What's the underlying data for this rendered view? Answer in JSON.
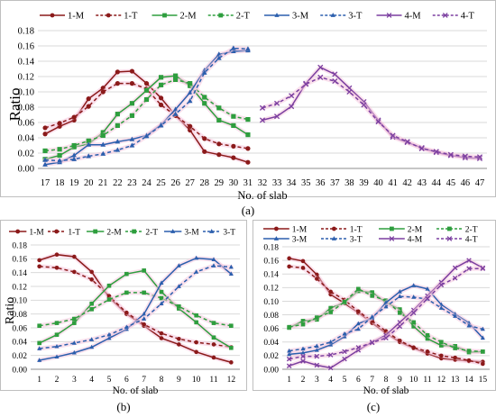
{
  "captions": [
    "(a)",
    "(b)",
    "(c)"
  ],
  "chart_data": [
    {
      "type": "line",
      "xlabel": "No. of slab",
      "ylabel": "Ratio",
      "ylim": [
        0,
        0.18
      ],
      "yticks": [
        "0.00",
        "0.02",
        "0.04",
        "0.06",
        "0.08",
        "0.10",
        "0.12",
        "0.14",
        "0.16",
        "0.18"
      ],
      "categories": [
        17,
        18,
        19,
        20,
        21,
        22,
        23,
        24,
        25,
        26,
        27,
        28,
        29,
        30,
        31,
        32,
        33,
        34,
        35,
        36,
        37,
        38,
        39,
        40,
        41,
        42,
        43,
        44,
        45,
        46,
        47
      ],
      "grid": true,
      "legend_position": "top",
      "series": [
        {
          "name": "1-M",
          "x": [
            17,
            18,
            19,
            20,
            21,
            22,
            23,
            24,
            25,
            26,
            27,
            28,
            29,
            30,
            31
          ],
          "values": [
            0.045,
            0.055,
            0.063,
            0.091,
            0.105,
            0.126,
            0.127,
            0.111,
            0.092,
            0.069,
            0.05,
            0.022,
            0.018,
            0.014,
            0.008
          ]
        },
        {
          "name": "1-T",
          "x": [
            17,
            18,
            19,
            20,
            21,
            22,
            23,
            24,
            25,
            26,
            27,
            28,
            29,
            30,
            31
          ],
          "values": [
            0.053,
            0.059,
            0.067,
            0.081,
            0.1,
            0.111,
            0.111,
            0.104,
            0.083,
            0.069,
            0.055,
            0.039,
            0.032,
            0.029,
            0.026
          ]
        },
        {
          "name": "2-M",
          "x": [
            17,
            18,
            19,
            20,
            21,
            22,
            23,
            24,
            25,
            26,
            27,
            28,
            29,
            30,
            31
          ],
          "values": [
            0.012,
            0.017,
            0.028,
            0.032,
            0.047,
            0.071,
            0.085,
            0.102,
            0.119,
            0.121,
            0.108,
            0.085,
            0.063,
            0.056,
            0.044
          ]
        },
        {
          "name": "2-T",
          "x": [
            17,
            18,
            19,
            20,
            21,
            22,
            23,
            24,
            25,
            26,
            27,
            28,
            29,
            30,
            31
          ],
          "values": [
            0.023,
            0.025,
            0.03,
            0.036,
            0.043,
            0.056,
            0.069,
            0.09,
            0.109,
            0.116,
            0.111,
            0.093,
            0.079,
            0.068,
            0.064
          ]
        },
        {
          "name": "3-M",
          "x": [
            17,
            18,
            19,
            20,
            21,
            22,
            23,
            24,
            25,
            26,
            27,
            28,
            29,
            30,
            31
          ],
          "values": [
            0.005,
            0.008,
            0.017,
            0.031,
            0.031,
            0.035,
            0.038,
            0.043,
            0.057,
            0.077,
            0.099,
            0.128,
            0.149,
            0.153,
            0.154
          ]
        },
        {
          "name": "3-T",
          "x": [
            17,
            18,
            19,
            20,
            21,
            22,
            23,
            24,
            25,
            26,
            27,
            28,
            29,
            30,
            31
          ],
          "values": [
            0.011,
            0.01,
            0.012,
            0.016,
            0.019,
            0.024,
            0.03,
            0.042,
            0.056,
            0.071,
            0.088,
            0.125,
            0.144,
            0.157,
            0.156
          ]
        },
        {
          "name": "4-M",
          "x": [
            32,
            33,
            34,
            35,
            36,
            37,
            38,
            39,
            40,
            41,
            42,
            43,
            44,
            45,
            46,
            47
          ],
          "values": [
            0.063,
            0.068,
            0.081,
            0.111,
            0.132,
            0.123,
            0.105,
            0.087,
            0.063,
            0.041,
            0.034,
            0.027,
            0.021,
            0.017,
            0.014,
            0.013
          ]
        },
        {
          "name": "4-T",
          "x": [
            32,
            33,
            34,
            35,
            36,
            37,
            38,
            39,
            40,
            41,
            42,
            43,
            44,
            45,
            46,
            47
          ],
          "values": [
            0.079,
            0.085,
            0.095,
            0.11,
            0.119,
            0.114,
            0.1,
            0.083,
            0.061,
            0.043,
            0.035,
            0.026,
            0.022,
            0.018,
            0.016,
            0.015
          ]
        }
      ]
    },
    {
      "type": "line",
      "xlabel": "No. of slab",
      "ylabel": "Ratio",
      "ylim": [
        0,
        0.18
      ],
      "yticks": [
        "0.00",
        "0.02",
        "0.04",
        "0.06",
        "0.08",
        "0.10",
        "0.12",
        "0.14",
        "0.16",
        "0.18"
      ],
      "categories": [
        1,
        2,
        3,
        4,
        5,
        6,
        7,
        8,
        9,
        10,
        11,
        12
      ],
      "grid": true,
      "legend_position": "top",
      "series": [
        {
          "name": "1-M",
          "values": [
            0.158,
            0.166,
            0.163,
            0.141,
            0.104,
            0.08,
            0.063,
            0.045,
            0.036,
            0.025,
            0.017,
            0.01
          ]
        },
        {
          "name": "1-T",
          "values": [
            0.149,
            0.147,
            0.141,
            0.13,
            0.106,
            0.082,
            0.065,
            0.052,
            0.044,
            0.039,
            0.036,
            0.032
          ]
        },
        {
          "name": "2-M",
          "values": [
            0.038,
            0.05,
            0.067,
            0.095,
            0.121,
            0.138,
            0.143,
            0.112,
            0.088,
            0.068,
            0.046,
            0.031
          ]
        },
        {
          "name": "2-T",
          "values": [
            0.063,
            0.067,
            0.073,
            0.087,
            0.101,
            0.111,
            0.111,
            0.103,
            0.091,
            0.078,
            0.067,
            0.063
          ]
        },
        {
          "name": "3-M",
          "values": [
            0.013,
            0.018,
            0.024,
            0.032,
            0.045,
            0.058,
            0.08,
            0.125,
            0.15,
            0.161,
            0.159,
            0.138
          ]
        },
        {
          "name": "3-T",
          "values": [
            0.03,
            0.033,
            0.038,
            0.043,
            0.05,
            0.061,
            0.073,
            0.095,
            0.12,
            0.141,
            0.15,
            0.148
          ]
        }
      ]
    },
    {
      "type": "line",
      "xlabel": "No. of slab",
      "ylabel": "",
      "ylim": [
        0,
        0.18
      ],
      "yticks": [
        "0.00",
        "0.02",
        "0.04",
        "0.06",
        "0.08",
        "0.10",
        "0.12",
        "0.14",
        "0.16",
        "0.18"
      ],
      "categories": [
        1,
        2,
        3,
        4,
        5,
        6,
        7,
        8,
        9,
        10,
        11,
        12,
        13,
        14,
        15
      ],
      "grid": true,
      "legend_position": "top",
      "series": [
        {
          "name": "1-M",
          "values": [
            0.163,
            0.159,
            0.139,
            0.11,
            0.097,
            0.083,
            0.068,
            0.053,
            0.04,
            0.031,
            0.023,
            0.016,
            0.014,
            0.012,
            0.011
          ]
        },
        {
          "name": "1-T",
          "values": [
            0.151,
            0.149,
            0.133,
            0.114,
            0.102,
            0.085,
            0.071,
            0.056,
            0.042,
            0.032,
            0.026,
            0.02,
            0.017,
            0.013,
            0.008
          ]
        },
        {
          "name": "2-M",
          "values": [
            0.061,
            0.071,
            0.073,
            0.09,
            0.098,
            0.115,
            0.113,
            0.098,
            0.088,
            0.063,
            0.045,
            0.035,
            0.034,
            0.025,
            0.026
          ]
        },
        {
          "name": "2-T",
          "values": [
            0.062,
            0.066,
            0.076,
            0.084,
            0.099,
            0.118,
            0.108,
            0.101,
            0.083,
            0.069,
            0.05,
            0.04,
            0.031,
            0.027,
            0.026
          ]
        },
        {
          "name": "3-M",
          "values": [
            0.022,
            0.024,
            0.028,
            0.036,
            0.048,
            0.067,
            0.075,
            0.098,
            0.114,
            0.123,
            0.118,
            0.095,
            0.081,
            0.068,
            0.046
          ]
        },
        {
          "name": "3-T",
          "values": [
            0.027,
            0.03,
            0.034,
            0.04,
            0.052,
            0.059,
            0.077,
            0.092,
            0.107,
            0.106,
            0.103,
            0.09,
            0.078,
            0.064,
            0.059
          ]
        },
        {
          "name": "4-M",
          "values": [
            0.005,
            0.012,
            0.006,
            0.002,
            0.015,
            0.028,
            0.04,
            0.05,
            0.069,
            0.087,
            0.108,
            0.128,
            0.149,
            0.16,
            0.149
          ]
        },
        {
          "name": "4-T",
          "values": [
            0.015,
            0.019,
            0.019,
            0.021,
            0.026,
            0.032,
            0.039,
            0.046,
            0.063,
            0.083,
            0.104,
            0.124,
            0.134,
            0.148,
            0.148
          ]
        }
      ]
    }
  ],
  "series_styles": {
    "1-M": {
      "color": "#8b1a1a",
      "dash": false,
      "marker": "circle"
    },
    "1-T": {
      "color": "#8b1a1a",
      "dash": true,
      "marker": "circle"
    },
    "2-M": {
      "color": "#2e9e3e",
      "dash": false,
      "marker": "square"
    },
    "2-T": {
      "color": "#2e9e3e",
      "dash": true,
      "marker": "square"
    },
    "3-M": {
      "color": "#2b5fad",
      "dash": false,
      "marker": "triangle"
    },
    "3-T": {
      "color": "#2b5fad",
      "dash": true,
      "marker": "triangle"
    },
    "4-M": {
      "color": "#7b3fa0",
      "dash": false,
      "marker": "cross"
    },
    "4-T": {
      "color": "#7b3fa0",
      "dash": true,
      "marker": "cross"
    }
  },
  "highlight_color": "#f6c9de"
}
